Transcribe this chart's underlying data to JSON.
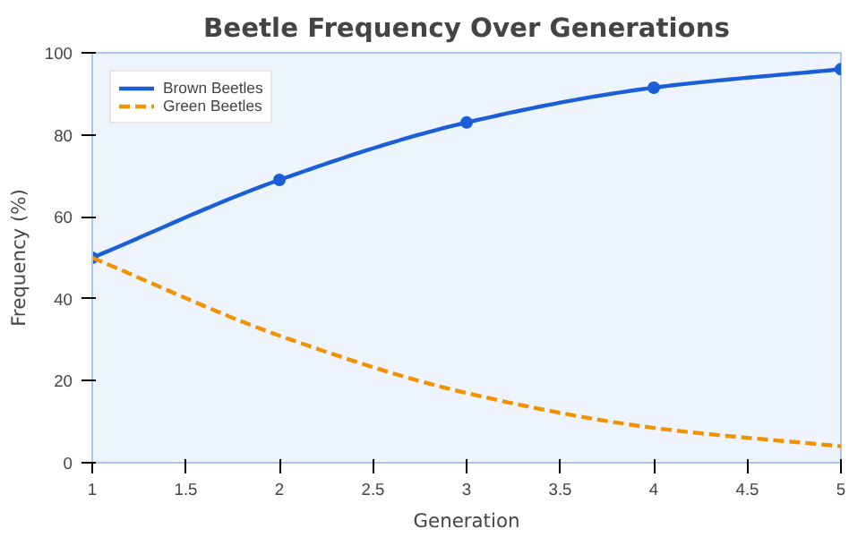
{
  "chart_data": {
    "type": "line",
    "title": "Beetle Frequency Over Generations",
    "xlabel": "Generation",
    "ylabel": "Frequency (%)",
    "x": [
      1,
      2,
      3,
      4,
      5
    ],
    "series": [
      {
        "name": "Brown Beetles",
        "color": "#1a5fd8",
        "values": [
          50,
          69,
          83,
          91.5,
          96
        ],
        "marker": "circle",
        "line_style": "solid"
      },
      {
        "name": "Green Beetles",
        "color": "#f39200",
        "values": [
          50,
          31,
          17,
          8.5,
          4
        ],
        "marker": "none",
        "line_style": "dashed"
      }
    ],
    "xlim": [
      1,
      5
    ],
    "ylim": [
      0,
      100
    ],
    "xticks": [
      1,
      1.5,
      2,
      2.5,
      3,
      3.5,
      4,
      4.5,
      5
    ],
    "yticks": [
      0,
      20,
      40,
      60,
      80,
      100
    ],
    "grid": false,
    "legend": "top left"
  }
}
